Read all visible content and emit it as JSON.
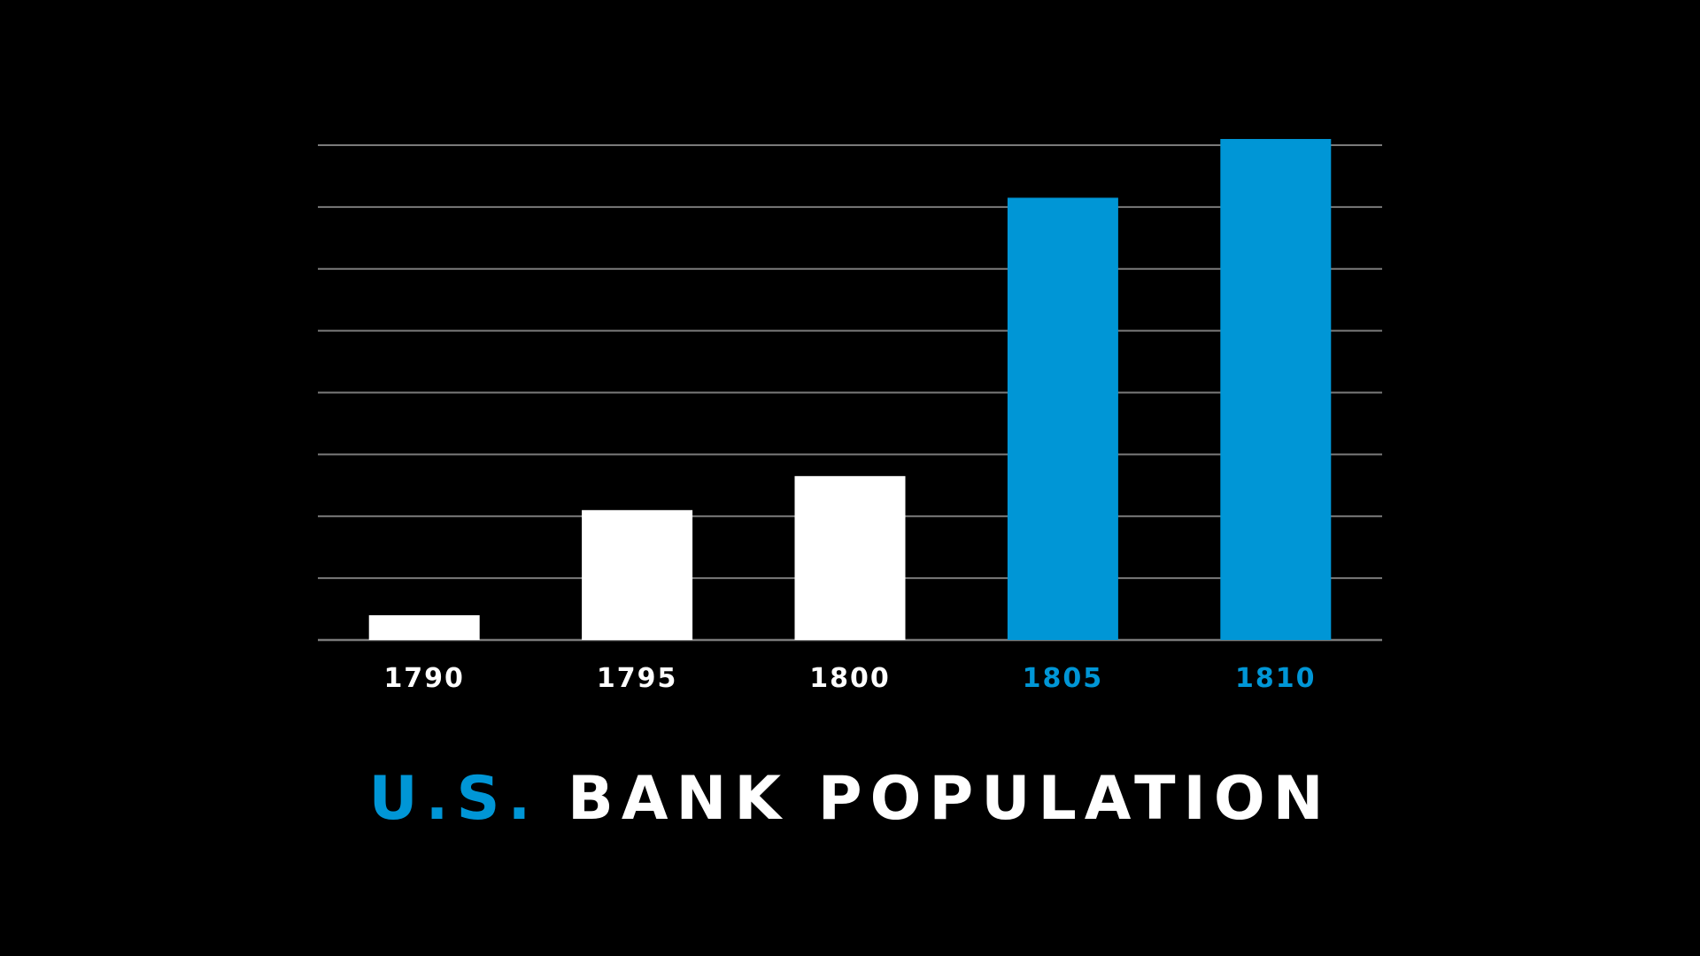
{
  "colors": {
    "background": "#000000",
    "highlight": "#0096D6",
    "default": "#FFFFFF",
    "grid": "#7a7a7a"
  },
  "chart_data": {
    "type": "bar",
    "categories": [
      "1790",
      "1795",
      "1800",
      "1805",
      "1810"
    ],
    "values": [
      4,
      21,
      26.5,
      71.5,
      81
    ],
    "highlighted": [
      false,
      false,
      false,
      true,
      true
    ],
    "ylim": [
      0,
      80
    ],
    "grid": true,
    "gridlines": 8,
    "y_tick_labels": false,
    "title_accent": "U.S.",
    "title_main": "BANK POPULATION"
  }
}
